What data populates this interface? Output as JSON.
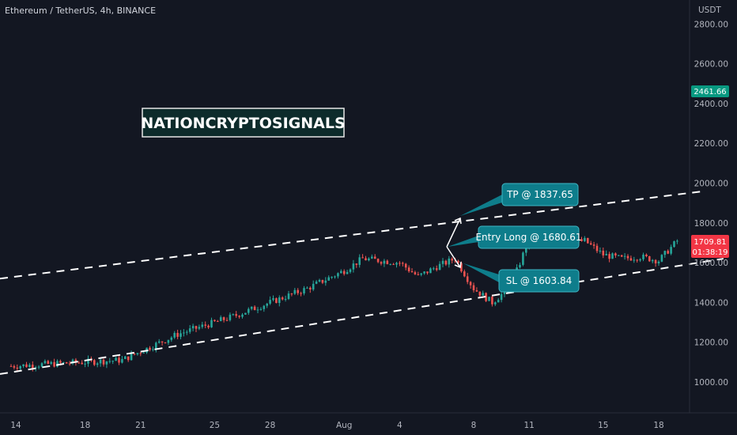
{
  "header": {
    "title": "Ethereum / TetherUS, 4h, BINANCE"
  },
  "watermark": {
    "text": "NATIONCRYPTOSIGNALS"
  },
  "price_axis": {
    "unit": "USDT"
  },
  "current_price_tag": {
    "price": "1709.81",
    "countdown": "01:38:19",
    "color": "#f23645"
  },
  "high_price_tag": {
    "price": "2461.66",
    "color": "#089981"
  },
  "colors": {
    "up": "#26a69a",
    "down": "#ef5350",
    "callout": "#0e7d8b",
    "background": "#131722"
  },
  "annotations": [
    {
      "id": "tp",
      "text": "TP @ 1837.65"
    },
    {
      "id": "entry",
      "text": "Entry Long @ 1680.61"
    },
    {
      "id": "sl",
      "text": "SL @ 1603.84"
    }
  ],
  "chart_data": {
    "type": "candlestick",
    "title": "Ethereum / TetherUS, 4h, BINANCE",
    "ylabel": "USDT",
    "ylim": [
      900,
      2900
    ],
    "y_ticks": [
      "1000.00",
      "1200.00",
      "1400.00",
      "1600.00",
      "1800.00",
      "2000.00",
      "2200.00",
      "2400.00",
      "2600.00",
      "2800.00"
    ],
    "x_ticks": [
      "14",
      "18",
      "21",
      "25",
      "28",
      "Aug",
      "4",
      "8",
      "11",
      "15",
      "18"
    ],
    "close_path": [
      [
        0,
        1080
      ],
      [
        3,
        1095
      ],
      [
        6,
        1110
      ],
      [
        9,
        1240
      ],
      [
        12,
        1330
      ],
      [
        14,
        1400
      ],
      [
        16,
        1470
      ],
      [
        18,
        1560
      ],
      [
        19,
        1620
      ],
      [
        21,
        1600
      ],
      [
        22,
        1530
      ],
      [
        23,
        1580
      ],
      [
        24,
        1620
      ],
      [
        25,
        1470
      ],
      [
        26,
        1400
      ],
      [
        27,
        1480
      ],
      [
        28,
        1720
      ],
      [
        29,
        1740
      ],
      [
        30,
        1700
      ],
      [
        31,
        1710
      ],
      [
        32,
        1640
      ],
      [
        33,
        1620
      ],
      [
        34,
        1630
      ],
      [
        35,
        1610
      ],
      [
        36,
        1709.81
      ]
    ],
    "channel": {
      "upper": [
        [
          0,
          1520
        ],
        [
          37.5,
          1960
        ]
      ],
      "lower": [
        [
          0,
          1040
        ],
        [
          38.5,
          1620
        ]
      ]
    },
    "levels": {
      "tp": 1837.65,
      "entry": 1680.61,
      "sl": 1603.84
    }
  }
}
